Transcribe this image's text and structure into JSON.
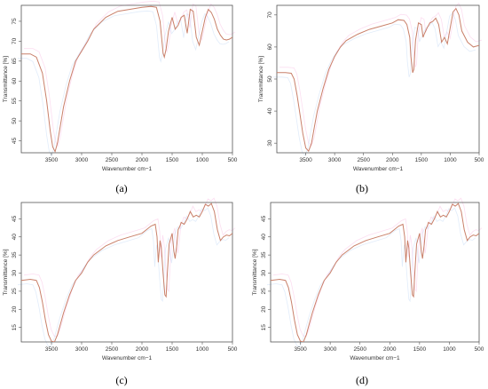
{
  "colors": {
    "line": "#c9806a",
    "ghost_pink": "#f5a0d8",
    "ghost_blue": "#a8c8f0",
    "axis": "#555555"
  },
  "chart_data": [
    {
      "type": "line",
      "panel": "(a)",
      "xlabel": "Wavenumber cm−1",
      "ylabel": "Transmittance [%]",
      "xlim": [
        4000,
        500
      ],
      "ylim": [
        42,
        79
      ],
      "xticks": [
        3500,
        3000,
        2500,
        2000,
        1500,
        1000,
        500
      ],
      "xtick_labels": [
        "3500",
        "3000",
        "2500",
        "2000",
        "1500",
        "1000",
        "500"
      ],
      "yticks": [
        45,
        50,
        55,
        60,
        65,
        70,
        75
      ],
      "ytick_labels": [
        "45",
        "50",
        "55",
        "60",
        "65",
        "70",
        "75"
      ],
      "series": [
        {
          "x": [
            4000,
            3850,
            3750,
            3650,
            3580,
            3520,
            3480,
            3440,
            3400,
            3350,
            3300,
            3200,
            3100,
            3000,
            2900,
            2800,
            2600,
            2400,
            2200,
            2000,
            1850,
            1760,
            1700,
            1650,
            1630,
            1600,
            1560,
            1500,
            1450,
            1400,
            1350,
            1300,
            1250,
            1200,
            1150,
            1100,
            1050,
            1000,
            950,
            900,
            850,
            800,
            750,
            700,
            650,
            600,
            550,
            500
          ],
          "y": [
            66.8,
            66.8,
            66,
            62,
            55,
            47.5,
            43.5,
            42.3,
            44.5,
            49,
            53.5,
            60,
            65,
            67.5,
            70,
            73,
            76,
            77.5,
            78,
            78.5,
            78.7,
            78.5,
            75,
            67,
            66,
            68,
            72.5,
            76,
            73,
            74,
            76,
            76.5,
            72,
            78,
            77.5,
            71,
            69,
            72.5,
            76,
            78,
            77.2,
            75.5,
            73,
            71.5,
            70.5,
            70.3,
            70.5,
            71
          ]
        }
      ]
    },
    {
      "type": "line",
      "panel": "(b)",
      "xlabel": "Wavenumber cm−1",
      "ylabel": "Transmittance [%]",
      "xlim": [
        4000,
        500
      ],
      "ylim": [
        27,
        73
      ],
      "xticks": [
        3500,
        3000,
        2500,
        2000,
        1500,
        1000,
        500
      ],
      "xtick_labels": [
        "3500",
        "3000",
        "2500",
        "2000",
        "1500",
        "1000",
        "500"
      ],
      "yticks": [
        30,
        40,
        50,
        60,
        70
      ],
      "ytick_labels": [
        "30",
        "40",
        "50",
        "60",
        "70"
      ],
      "series": [
        {
          "x": [
            4000,
            3850,
            3750,
            3700,
            3650,
            3600,
            3550,
            3500,
            3450,
            3400,
            3350,
            3300,
            3200,
            3100,
            3000,
            2900,
            2800,
            2600,
            2400,
            2200,
            2000,
            1900,
            1800,
            1750,
            1700,
            1680,
            1650,
            1630,
            1600,
            1550,
            1500,
            1470,
            1450,
            1400,
            1350,
            1300,
            1250,
            1200,
            1150,
            1100,
            1050,
            1000,
            950,
            900,
            850,
            800,
            700,
            600,
            500
          ],
          "y": [
            52,
            52,
            51.8,
            50,
            45,
            39,
            33,
            28.5,
            27.5,
            30,
            35,
            40,
            47,
            53,
            57,
            60,
            62,
            64,
            65.5,
            66.5,
            67.5,
            68.5,
            68.3,
            67,
            63,
            57,
            52,
            53,
            62,
            67.5,
            67,
            63,
            64,
            66,
            67.5,
            68,
            69,
            67,
            61.5,
            63,
            61,
            66,
            71,
            72,
            70,
            65,
            61.5,
            60,
            60.5
          ]
        }
      ]
    },
    {
      "type": "line",
      "panel": "(c)",
      "xlabel": "Wavenumber cm−1",
      "ylabel": "Transmittance [%]",
      "xlim": [
        4000,
        500
      ],
      "ylim": [
        11,
        49.5
      ],
      "xticks": [
        3500,
        3000,
        2500,
        2000,
        1500,
        1000,
        500
      ],
      "xtick_labels": [
        "3500",
        "3000",
        "2500",
        "2000",
        "1500",
        "1000",
        "500"
      ],
      "yticks": [
        15,
        20,
        25,
        30,
        35,
        40,
        45
      ],
      "ytick_labels": [
        "15",
        "20",
        "25",
        "30",
        "35",
        "40",
        "45"
      ],
      "series": [
        {
          "x": [
            4000,
            3850,
            3750,
            3700,
            3650,
            3600,
            3550,
            3500,
            3450,
            3400,
            3350,
            3300,
            3200,
            3100,
            3000,
            2900,
            2800,
            2600,
            2400,
            2200,
            2000,
            1850,
            1780,
            1750,
            1730,
            1700,
            1680,
            1650,
            1620,
            1600,
            1580,
            1550,
            1500,
            1470,
            1450,
            1420,
            1400,
            1370,
            1350,
            1300,
            1250,
            1200,
            1150,
            1100,
            1050,
            1000,
            950,
            900,
            850,
            800,
            750,
            700,
            650,
            600,
            550,
            500
          ],
          "y": [
            28,
            28.3,
            28,
            26,
            22,
            17,
            13,
            11.2,
            11,
            13,
            16,
            19,
            24,
            28,
            30,
            33,
            35,
            37.5,
            39,
            40,
            41,
            43,
            43.5,
            40,
            33,
            39,
            37,
            30,
            24,
            23.5,
            30,
            38,
            41,
            36,
            34,
            38,
            42,
            43,
            44,
            43.5,
            45,
            47,
            45.5,
            46,
            45.5,
            47,
            49,
            48.5,
            49.2,
            47,
            42,
            39,
            40,
            40.5,
            40.3,
            41
          ]
        }
      ]
    },
    {
      "type": "line",
      "panel": "(d)",
      "xlabel": "Wavenumber cm−1",
      "ylabel": "Transmittance [%]",
      "xlim": [
        4000,
        500
      ],
      "ylim": [
        11,
        49.5
      ],
      "xticks": [
        3500,
        3000,
        2500,
        2000,
        1500,
        1000,
        500
      ],
      "xtick_labels": [
        "3500",
        "3000",
        "2500",
        "2000",
        "1500",
        "1000",
        "500"
      ],
      "yticks": [
        15,
        20,
        25,
        30,
        35,
        40,
        45
      ],
      "ytick_labels": [
        "15",
        "20",
        "25",
        "30",
        "35",
        "40",
        "45"
      ],
      "series": [
        {
          "x": [
            4000,
            3850,
            3750,
            3700,
            3650,
            3600,
            3550,
            3500,
            3450,
            3400,
            3350,
            3300,
            3200,
            3100,
            3000,
            2900,
            2800,
            2600,
            2400,
            2200,
            2000,
            1850,
            1780,
            1750,
            1730,
            1700,
            1680,
            1650,
            1620,
            1600,
            1580,
            1550,
            1500,
            1470,
            1450,
            1420,
            1400,
            1370,
            1350,
            1300,
            1250,
            1200,
            1150,
            1100,
            1050,
            1000,
            950,
            900,
            850,
            800,
            750,
            700,
            650,
            600,
            550,
            500
          ],
          "y": [
            28,
            28.3,
            28,
            26,
            22,
            17,
            13,
            11.2,
            11,
            13,
            16,
            19,
            24,
            28,
            30,
            33,
            35,
            37.5,
            39,
            40,
            41,
            43,
            43.5,
            40,
            33,
            39,
            37,
            30,
            24,
            23.5,
            30,
            38,
            41,
            36,
            34,
            38,
            42,
            43,
            44,
            43.5,
            45,
            47,
            45.5,
            46,
            45.5,
            47,
            49,
            48.5,
            49.2,
            47,
            42,
            39,
            40,
            40.5,
            40.3,
            41
          ]
        }
      ]
    }
  ]
}
